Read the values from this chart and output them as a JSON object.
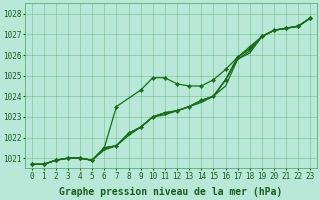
{
  "xlabel": "Graphe pression niveau de la mer (hPa)",
  "x": [
    0,
    1,
    2,
    3,
    4,
    5,
    6,
    7,
    8,
    9,
    10,
    11,
    12,
    13,
    14,
    15,
    16,
    17,
    18,
    19,
    20,
    21,
    22,
    23
  ],
  "line1": [
    1020.7,
    1020.7,
    1020.9,
    1021.0,
    1021.0,
    1020.9,
    1021.4,
    1021.6,
    1022.1,
    1022.5,
    1023.0,
    1023.1,
    1023.3,
    1023.5,
    1023.7,
    1024.0,
    1024.5,
    1025.8,
    1026.1,
    1026.9,
    1027.2,
    1027.3,
    1027.4,
    1027.8
  ],
  "line2": [
    1020.7,
    1020.7,
    1020.9,
    1021.0,
    1021.0,
    1020.9,
    1021.5,
    1021.6,
    1022.2,
    1022.5,
    1023.0,
    1023.2,
    1023.3,
    1023.5,
    1023.8,
    1024.0,
    1024.8,
    1025.8,
    1026.2,
    1026.9,
    1027.2,
    1027.3,
    1027.4,
    1027.8
  ],
  "line3": [
    1020.7,
    1020.7,
    1020.9,
    1021.0,
    1021.0,
    1020.9,
    1021.5,
    1021.6,
    1022.2,
    1022.5,
    1023.0,
    1023.2,
    1023.3,
    1023.5,
    1023.8,
    1024.0,
    1024.8,
    1025.9,
    1026.3,
    1026.9,
    1027.2,
    1027.3,
    1027.4,
    1027.8
  ],
  "line4_markers": [
    1020.7,
    1020.7,
    1020.9,
    1021.0,
    1021.0,
    1020.9,
    1021.5,
    1023.5,
    1024.3,
    1024.9,
    1024.9,
    1024.6,
    1024.5,
    1024.5,
    1024.8,
    1025.3,
    1025.9,
    1026.4,
    1026.9,
    1027.2,
    1027.3,
    1027.4,
    1027.8
  ],
  "line4_x": [
    0,
    1,
    2,
    3,
    4,
    5,
    6,
    7,
    9,
    10,
    11,
    12,
    13,
    14,
    15,
    16,
    17,
    18,
    19,
    20,
    21,
    22,
    23
  ],
  "ylim_min": 1020.5,
  "ylim_max": 1028.5,
  "yticks": [
    1021,
    1022,
    1023,
    1024,
    1025,
    1026,
    1027,
    1028
  ],
  "line_color": "#1a6e1a",
  "bg_color": "#b8e8d8",
  "grid_color": "#4d9e5a",
  "label_color": "#1a5c1a",
  "xlabel_fontsize": 7.0,
  "tick_fontsize": 5.5
}
